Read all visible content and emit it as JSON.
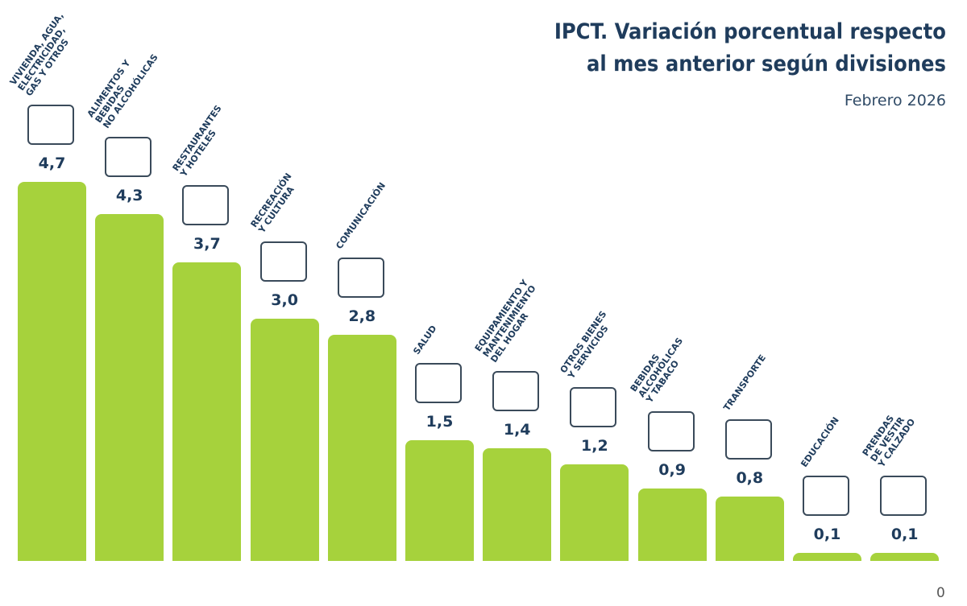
{
  "chart_data": {
    "type": "bar",
    "title": "IPCT. Variación porcentual respecto\nal mes anterior según divisiones",
    "subtitle": "Febrero 2026",
    "categories": [
      "VIVIENDA, AGUA,\nELECTRICIDAD,\nGAS Y OTROS",
      "ALIMENTOS Y\nBEBIDAS\nNO ALCOHÓLICAS",
      "RESTAURANTES\nY HOTELES",
      "RECREACIÓN\nY CULTURA",
      "COMUNICACIÓN",
      "SALUD",
      "EQUIPAMIENTO Y\nMANTENIMIENTO\nDEL HOGAR",
      "OTROS BIENES\nY SERVICIOS",
      "BEBIDAS\nALCOHÓLICAS\nY TABACO",
      "TRANSPORTE",
      "EDUCACIÓN",
      "PRENDAS\nDE VESTIR\nY CALZADO"
    ],
    "values": [
      4.7,
      4.3,
      3.7,
      3.0,
      2.8,
      1.5,
      1.4,
      1.2,
      0.9,
      0.8,
      0.1,
      0.1
    ],
    "value_labels": [
      "4,7",
      "4,3",
      "3,7",
      "3,0",
      "2,8",
      "1,5",
      "1,4",
      "1,2",
      "0,9",
      "0,8",
      "0,1",
      "0,1"
    ],
    "color": "#a6d23c",
    "ylim": [
      0,
      5
    ],
    "yticks": [
      0
    ]
  }
}
